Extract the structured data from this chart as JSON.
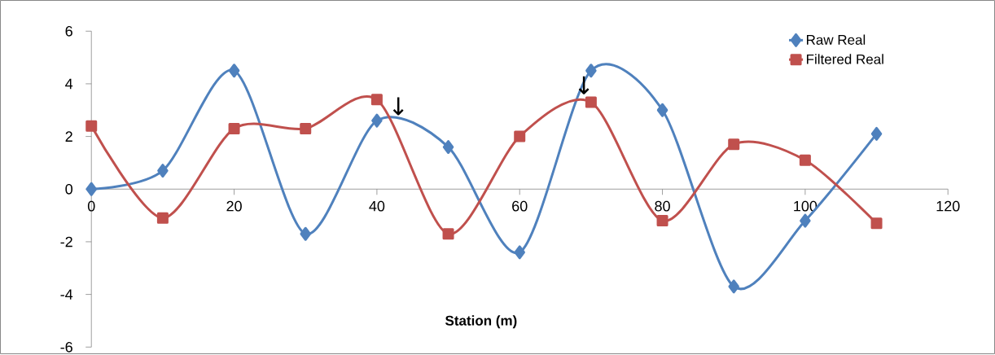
{
  "chart_data": {
    "type": "line",
    "xlabel": "Station (m)",
    "x": [
      0,
      10,
      20,
      30,
      40,
      50,
      60,
      70,
      80,
      90,
      100,
      110
    ],
    "series": [
      {
        "name": "Raw Real",
        "color": "#4f81bd",
        "marker": "diamond",
        "values": [
          0,
          0.7,
          4.5,
          -1.7,
          2.6,
          1.6,
          -2.4,
          4.5,
          3.0,
          -3.7,
          -1.2,
          2.1
        ]
      },
      {
        "name": "Filtered Real",
        "color": "#c0504d",
        "marker": "square",
        "values": [
          2.4,
          -1.1,
          2.3,
          2.3,
          3.4,
          -1.7,
          2.0,
          3.3,
          -1.2,
          1.7,
          1.1,
          -1.3
        ]
      }
    ],
    "xlim": [
      0,
      120
    ],
    "xticks": [
      0,
      20,
      40,
      60,
      80,
      100,
      120
    ],
    "ylim": [
      -6,
      6
    ],
    "yticks": [
      -6,
      -4,
      -2,
      0,
      2,
      4,
      6
    ],
    "grid": false,
    "legend": "top right",
    "annotations": [
      {
        "text": "↓",
        "x": 43,
        "y": 2.8
      },
      {
        "text": "↓",
        "x": 69,
        "y": 3.6
      }
    ]
  }
}
